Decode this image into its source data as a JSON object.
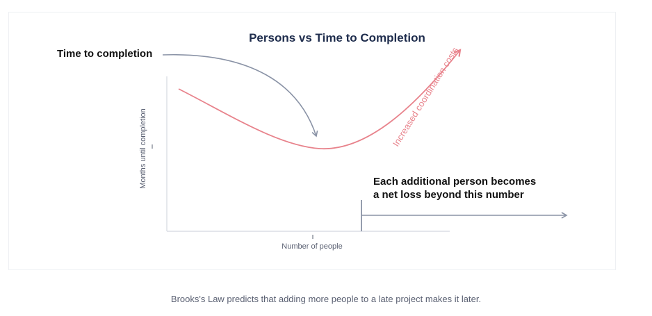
{
  "title": "Persons vs Time to Completion",
  "annotation_time": "Time to completion",
  "annotation_costs": "Increased coordination costs",
  "annotation_net_loss_line1": "Each additional person becomes",
  "annotation_net_loss_line2": "a net loss beyond this number",
  "axis_y_label": "Months until completion",
  "axis_x_label": "Number of people",
  "caption": "Brooks's Law predicts that adding more people to a late project makes it later.",
  "colors": {
    "title": "#1f2d4d",
    "annotation": "#111111",
    "curve": "#e8838c",
    "arrow": "#8a93a6",
    "axis": "#d4d8df",
    "axis_label": "#5a6072",
    "caption": "#5a6072"
  }
}
